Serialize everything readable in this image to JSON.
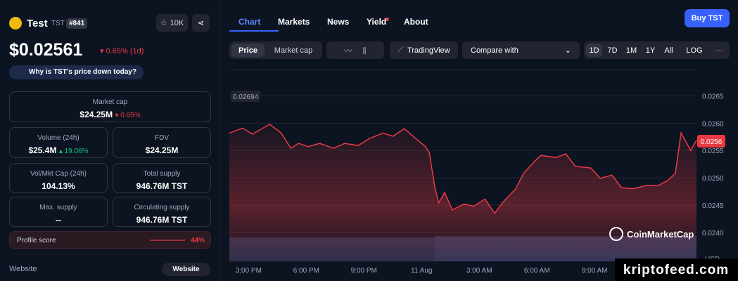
{
  "header": {
    "name": "Test",
    "symbol": "TST",
    "rank": "#841",
    "watchlist": "10K"
  },
  "price": {
    "value": "$0.02561",
    "change": "0.65% (1d)",
    "question": "Why is TST's price down today?"
  },
  "stats": [
    {
      "label": "Market cap",
      "value": "$24.25M",
      "change": "0.65%"
    },
    {
      "label": "Volume (24h)",
      "value": "$25.4M",
      "change": "19.06%"
    },
    {
      "label": "FDV",
      "value": "$24.25M"
    },
    {
      "label": "Vol/Mkt Cap (24h)",
      "value": "104.13%"
    },
    {
      "label": "Total supply",
      "value": "946.76M TST"
    },
    {
      "label": "Max. supply",
      "value": "--"
    },
    {
      "label": "Circulating supply",
      "value": "946.76M TST"
    }
  ],
  "profile": {
    "label": "Profile score",
    "value": "44%"
  },
  "website": {
    "label": "Website",
    "button": "Website"
  },
  "tabs": [
    "Chart",
    "Markets",
    "News",
    "Yield",
    "About"
  ],
  "buy": "Buy TST",
  "toolbar": {
    "price": "Price",
    "market_cap": "Market cap",
    "tradingview": "TradingView",
    "compare": "Compare with",
    "ranges": [
      "1D",
      "7D",
      "1M",
      "1Y",
      "All"
    ],
    "log": "LOG"
  },
  "chart_data": {
    "type": "line",
    "series": [
      {
        "color": "#ea3943",
        "x": [
          14.0,
          14.7,
          15.2,
          16.1,
          16.7,
          17.2,
          17.6,
          18.1,
          18.7,
          19.4,
          20.0,
          20.7,
          21.3,
          22.0,
          22.5,
          23.1,
          23.6,
          24.2,
          24.4,
          24.7,
          24.9,
          25.2,
          25.6,
          26.2,
          26.7,
          27.3,
          27.8,
          28.2,
          28.9,
          29.3,
          29.9,
          30.2,
          31.0,
          31.5,
          32.0,
          32.8,
          33.3,
          33.9,
          34.4,
          35.0,
          35.7,
          36.3,
          36.8,
          37.2,
          37.5,
          37.7,
          38.0,
          38.3
        ],
        "values": [
          0.02582,
          0.02591,
          0.0258,
          0.02598,
          0.02582,
          0.02554,
          0.02563,
          0.02557,
          0.02563,
          0.02554,
          0.02563,
          0.02559,
          0.02572,
          0.02582,
          0.02576,
          0.0259,
          0.02575,
          0.02557,
          0.02546,
          0.0248,
          0.02454,
          0.02473,
          0.02441,
          0.02452,
          0.02448,
          0.02461,
          0.02435,
          0.02454,
          0.0248,
          0.02508,
          0.02531,
          0.02541,
          0.02537,
          0.02544,
          0.02521,
          0.02518,
          0.02499,
          0.02505,
          0.02482,
          0.0248,
          0.02486,
          0.02486,
          0.02495,
          0.02508,
          0.02582,
          0.02569,
          0.0255,
          0.02569
        ]
      }
    ],
    "xlim": [
      14,
      38.3
    ],
    "xticks": [
      {
        "value": 15,
        "label": "3:00 PM"
      },
      {
        "value": 18,
        "label": "6:00 PM"
      },
      {
        "value": 21,
        "label": "9:00 PM"
      },
      {
        "value": 24,
        "label": "11 Aug"
      },
      {
        "value": 27,
        "label": "3:00 AM"
      },
      {
        "value": 30,
        "label": "6:00 AM"
      },
      {
        "value": 33,
        "label": "9:00 AM"
      }
    ],
    "ylim": [
      0.02347,
      0.02697
    ],
    "yticks": [
      {
        "value": 0.024,
        "label": "0.0240"
      },
      {
        "value": 0.0245,
        "label": "0.0245"
      },
      {
        "value": 0.025,
        "label": "0.0250"
      },
      {
        "value": 0.0255,
        "label": "0.0255"
      },
      {
        "value": 0.026,
        "label": "0.0260"
      },
      {
        "value": 0.0265,
        "label": "0.0265"
      }
    ],
    "grid": true,
    "high_label": "0.02694",
    "current_label": "0.0256",
    "currency": "USD",
    "watermark": "CoinMarketCap"
  },
  "site_watermark": "kriptofeed.com"
}
